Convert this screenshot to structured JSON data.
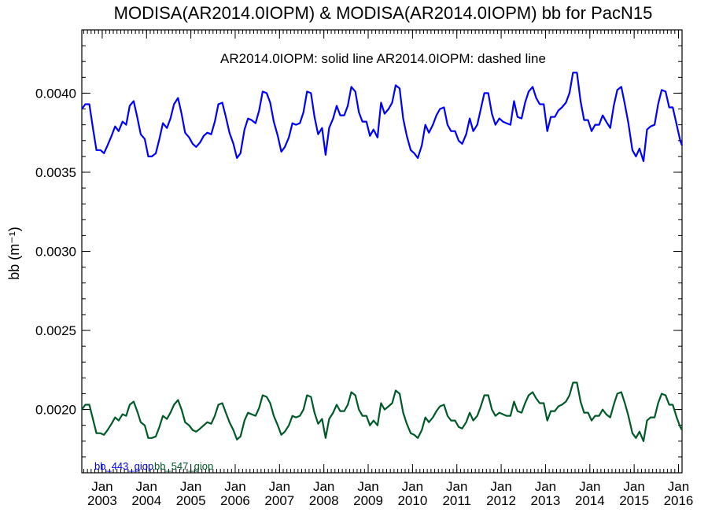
{
  "chart_data": {
    "type": "line",
    "title": "MODISA(AR2014.0IOPM) & MODISA(AR2014.0IOPM)  bb for PacN15",
    "subtitle": "AR2014.0IOPM: solid line   AR2014.0IOPM: dashed line",
    "ylabel": "bb (m⁻¹)",
    "xlabel": "",
    "ylim": [
      0.0016,
      0.0044
    ],
    "xlim": [
      2002.54,
      2016.08
    ],
    "y_ticks": [
      0.0035,
      0.003,
      0.0025,
      0.002,
      0.004
    ],
    "y_tick_labels": [
      "0.0035",
      "0.0030",
      "0.0025",
      "0.0020",
      "0.0040"
    ],
    "x_ticks": [
      {
        "month": "Jan",
        "year": "2003",
        "t": 2003.0
      },
      {
        "month": "Jan",
        "year": "2004",
        "t": 2004.0
      },
      {
        "month": "Jan",
        "year": "2005",
        "t": 2005.0
      },
      {
        "month": "Jan",
        "year": "2006",
        "t": 2006.0
      },
      {
        "month": "Jan",
        "year": "2007",
        "t": 2007.0
      },
      {
        "month": "Jan",
        "year": "2008",
        "t": 2008.0
      },
      {
        "month": "Jan",
        "year": "2009",
        "t": 2009.0
      },
      {
        "month": "Jan",
        "year": "2010",
        "t": 2010.0
      },
      {
        "month": "Jan",
        "year": "2011",
        "t": 2011.0
      },
      {
        "month": "Jan",
        "year": "2012",
        "t": 2012.0
      },
      {
        "month": "Jan",
        "year": "2013",
        "t": 2013.0
      },
      {
        "month": "Jan",
        "year": "2014",
        "t": 2014.0
      },
      {
        "month": "Jan",
        "year": "2015",
        "t": 2015.0
      },
      {
        "month": "Jan",
        "year": "2016",
        "t": 2016.0
      }
    ],
    "grid": false,
    "legend_placement": "bottom-left",
    "series": [
      {
        "name": "bb_443_giop",
        "color": "#0000ff",
        "x": [
          2002.54,
          2002.62,
          2002.71,
          2002.79,
          2002.87,
          2002.96,
          2003.04,
          2003.12,
          2003.21,
          2003.29,
          2003.37,
          2003.46,
          2003.54,
          2003.62,
          2003.71,
          2003.79,
          2003.87,
          2003.96,
          2004.04,
          2004.12,
          2004.21,
          2004.29,
          2004.37,
          2004.46,
          2004.54,
          2004.62,
          2004.71,
          2004.79,
          2004.87,
          2004.96,
          2005.04,
          2005.12,
          2005.21,
          2005.29,
          2005.37,
          2005.46,
          2005.54,
          2005.62,
          2005.71,
          2005.79,
          2005.87,
          2005.96,
          2006.04,
          2006.12,
          2006.21,
          2006.29,
          2006.37,
          2006.46,
          2006.54,
          2006.62,
          2006.71,
          2006.79,
          2006.87,
          2006.96,
          2007.04,
          2007.12,
          2007.21,
          2007.29,
          2007.37,
          2007.46,
          2007.54,
          2007.62,
          2007.71,
          2007.79,
          2007.87,
          2007.96,
          2008.04,
          2008.12,
          2008.21,
          2008.29,
          2008.37,
          2008.46,
          2008.54,
          2008.62,
          2008.71,
          2008.79,
          2008.87,
          2008.96,
          2009.04,
          2009.12,
          2009.21,
          2009.29,
          2009.37,
          2009.46,
          2009.54,
          2009.62,
          2009.71,
          2009.79,
          2009.87,
          2009.96,
          2010.04,
          2010.12,
          2010.21,
          2010.29,
          2010.37,
          2010.46,
          2010.54,
          2010.62,
          2010.71,
          2010.79,
          2010.87,
          2010.96,
          2011.04,
          2011.12,
          2011.21,
          2011.29,
          2011.37,
          2011.46,
          2011.54,
          2011.62,
          2011.71,
          2011.79,
          2011.87,
          2011.96,
          2012.04,
          2012.12,
          2012.21,
          2012.29,
          2012.37,
          2012.46,
          2012.54,
          2012.62,
          2012.71,
          2012.79,
          2012.87,
          2012.96,
          2013.04,
          2013.12,
          2013.21,
          2013.29,
          2013.37,
          2013.46,
          2013.54,
          2013.62,
          2013.71,
          2013.79,
          2013.87,
          2013.96,
          2014.04,
          2014.12,
          2014.21,
          2014.29,
          2014.37,
          2014.46,
          2014.54,
          2014.62,
          2014.71,
          2014.79,
          2014.87,
          2014.96,
          2015.04,
          2015.12,
          2015.21,
          2015.29,
          2015.37,
          2015.46,
          2015.54,
          2015.62,
          2015.71,
          2015.79,
          2015.87,
          2015.96,
          2016.04,
          2016.08
        ],
        "values": [
          0.0039,
          0.00393,
          0.00393,
          0.00378,
          0.00364,
          0.00364,
          0.00362,
          0.00367,
          0.00373,
          0.00379,
          0.00376,
          0.00382,
          0.0038,
          0.00392,
          0.00395,
          0.00385,
          0.00374,
          0.00371,
          0.0036,
          0.0036,
          0.00362,
          0.00371,
          0.00381,
          0.00378,
          0.00384,
          0.00393,
          0.00397,
          0.00387,
          0.00375,
          0.00372,
          0.00368,
          0.00366,
          0.00369,
          0.00373,
          0.00375,
          0.00374,
          0.00382,
          0.00393,
          0.00394,
          0.00385,
          0.00375,
          0.00368,
          0.00359,
          0.00362,
          0.00377,
          0.00384,
          0.00383,
          0.00381,
          0.00389,
          0.00401,
          0.004,
          0.00394,
          0.00382,
          0.00373,
          0.00363,
          0.00366,
          0.00372,
          0.00381,
          0.0038,
          0.00381,
          0.00388,
          0.00401,
          0.004,
          0.00385,
          0.00374,
          0.00378,
          0.00361,
          0.00378,
          0.00384,
          0.00392,
          0.00386,
          0.00386,
          0.00392,
          0.00404,
          0.00401,
          0.00388,
          0.00382,
          0.00382,
          0.00373,
          0.00377,
          0.00372,
          0.00394,
          0.00387,
          0.0039,
          0.00394,
          0.00405,
          0.00403,
          0.00384,
          0.00373,
          0.00364,
          0.00362,
          0.00359,
          0.00367,
          0.0038,
          0.00375,
          0.0038,
          0.00386,
          0.0039,
          0.00391,
          0.0038,
          0.00376,
          0.00376,
          0.0037,
          0.00368,
          0.00374,
          0.00384,
          0.00376,
          0.0038,
          0.0039,
          0.004,
          0.004,
          0.00387,
          0.0038,
          0.00384,
          0.00382,
          0.00381,
          0.0038,
          0.00395,
          0.00385,
          0.00384,
          0.00394,
          0.00401,
          0.00404,
          0.00397,
          0.00393,
          0.00393,
          0.00376,
          0.00385,
          0.00385,
          0.00389,
          0.00391,
          0.00394,
          0.004,
          0.00413,
          0.00413,
          0.00395,
          0.00383,
          0.00383,
          0.00376,
          0.0038,
          0.0038,
          0.00386,
          0.00382,
          0.00378,
          0.00392,
          0.00402,
          0.00404,
          0.00393,
          0.00381,
          0.00364,
          0.0036,
          0.00365,
          0.00357,
          0.00377,
          0.00379,
          0.0038,
          0.00393,
          0.00402,
          0.00401,
          0.00391,
          0.00391,
          0.0038,
          0.0037,
          0.00367
        ]
      },
      {
        "name": "bb_547_giop",
        "color": "#005a28",
        "x": [
          2002.54,
          2002.62,
          2002.71,
          2002.79,
          2002.87,
          2002.96,
          2003.04,
          2003.12,
          2003.21,
          2003.29,
          2003.37,
          2003.46,
          2003.54,
          2003.62,
          2003.71,
          2003.79,
          2003.87,
          2003.96,
          2004.04,
          2004.12,
          2004.21,
          2004.29,
          2004.37,
          2004.46,
          2004.54,
          2004.62,
          2004.71,
          2004.79,
          2004.87,
          2004.96,
          2005.04,
          2005.12,
          2005.21,
          2005.29,
          2005.37,
          2005.46,
          2005.54,
          2005.62,
          2005.71,
          2005.79,
          2005.87,
          2005.96,
          2006.04,
          2006.12,
          2006.21,
          2006.29,
          2006.37,
          2006.46,
          2006.54,
          2006.62,
          2006.71,
          2006.79,
          2006.87,
          2006.96,
          2007.04,
          2007.12,
          2007.21,
          2007.29,
          2007.37,
          2007.46,
          2007.54,
          2007.62,
          2007.71,
          2007.79,
          2007.87,
          2007.96,
          2008.04,
          2008.12,
          2008.21,
          2008.29,
          2008.37,
          2008.46,
          2008.54,
          2008.62,
          2008.71,
          2008.79,
          2008.87,
          2008.96,
          2009.04,
          2009.12,
          2009.21,
          2009.29,
          2009.37,
          2009.46,
          2009.54,
          2009.62,
          2009.71,
          2009.79,
          2009.87,
          2009.96,
          2010.04,
          2010.12,
          2010.21,
          2010.29,
          2010.37,
          2010.46,
          2010.54,
          2010.62,
          2010.71,
          2010.79,
          2010.87,
          2010.96,
          2011.04,
          2011.12,
          2011.21,
          2011.29,
          2011.37,
          2011.46,
          2011.54,
          2011.62,
          2011.71,
          2011.79,
          2011.87,
          2011.96,
          2012.04,
          2012.12,
          2012.21,
          2012.29,
          2012.37,
          2012.46,
          2012.54,
          2012.62,
          2012.71,
          2012.79,
          2012.87,
          2012.96,
          2013.04,
          2013.12,
          2013.21,
          2013.29,
          2013.37,
          2013.46,
          2013.54,
          2013.62,
          2013.71,
          2013.79,
          2013.87,
          2013.96,
          2014.04,
          2014.12,
          2014.21,
          2014.29,
          2014.37,
          2014.46,
          2014.54,
          2014.62,
          2014.71,
          2014.79,
          2014.87,
          2014.96,
          2015.04,
          2015.12,
          2015.21,
          2015.29,
          2015.37,
          2015.46,
          2015.54,
          2015.62,
          2015.71,
          2015.79,
          2015.87,
          2015.96,
          2016.04,
          2016.08
        ],
        "values": [
          0.002,
          0.00203,
          0.00203,
          0.00194,
          0.00185,
          0.00185,
          0.00184,
          0.00187,
          0.00191,
          0.00195,
          0.00193,
          0.00197,
          0.00196,
          0.00203,
          0.00205,
          0.00199,
          0.00192,
          0.0019,
          0.00182,
          0.00182,
          0.00183,
          0.00189,
          0.00196,
          0.00194,
          0.00198,
          0.00203,
          0.00206,
          0.002,
          0.00192,
          0.0019,
          0.00187,
          0.00186,
          0.00188,
          0.0019,
          0.00192,
          0.00191,
          0.00196,
          0.00203,
          0.00204,
          0.00198,
          0.00192,
          0.00187,
          0.00181,
          0.00183,
          0.00193,
          0.00198,
          0.00197,
          0.00196,
          0.00201,
          0.00209,
          0.00208,
          0.00204,
          0.00196,
          0.0019,
          0.00184,
          0.00186,
          0.0019,
          0.00196,
          0.00195,
          0.00196,
          0.002,
          0.00209,
          0.00208,
          0.00198,
          0.00191,
          0.00194,
          0.00182,
          0.00194,
          0.00198,
          0.00203,
          0.00199,
          0.00199,
          0.00203,
          0.00211,
          0.00209,
          0.002,
          0.00196,
          0.00196,
          0.0019,
          0.00193,
          0.0019,
          0.00204,
          0.002,
          0.00202,
          0.00204,
          0.00212,
          0.0021,
          0.00198,
          0.00191,
          0.00185,
          0.00184,
          0.00182,
          0.00187,
          0.00195,
          0.00192,
          0.00195,
          0.00199,
          0.00202,
          0.00203,
          0.00196,
          0.00193,
          0.00193,
          0.00189,
          0.00188,
          0.00192,
          0.00198,
          0.00193,
          0.00196,
          0.00202,
          0.00209,
          0.00209,
          0.002,
          0.00196,
          0.00198,
          0.00197,
          0.00196,
          0.00196,
          0.00205,
          0.00199,
          0.00198,
          0.00204,
          0.00209,
          0.00211,
          0.00207,
          0.00204,
          0.00204,
          0.00193,
          0.00199,
          0.00199,
          0.00202,
          0.00203,
          0.00205,
          0.00209,
          0.00217,
          0.00217,
          0.00205,
          0.00198,
          0.00198,
          0.00193,
          0.00196,
          0.00196,
          0.002,
          0.00197,
          0.00195,
          0.00203,
          0.0021,
          0.00211,
          0.00204,
          0.00196,
          0.00185,
          0.00182,
          0.00186,
          0.0018,
          0.00193,
          0.00195,
          0.00195,
          0.00204,
          0.0021,
          0.00209,
          0.00203,
          0.00203,
          0.00195,
          0.00189,
          0.00187
        ]
      }
    ]
  }
}
